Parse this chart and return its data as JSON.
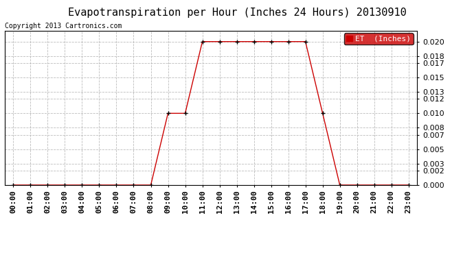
{
  "title": "Evapotranspiration per Hour (Inches 24 Hours) 20130910",
  "copyright": "Copyright 2013 Cartronics.com",
  "legend_label": "ET  (Inches)",
  "legend_bg": "#cc0000",
  "legend_text_color": "#ffffff",
  "line_color": "#cc0000",
  "marker_color": "#000000",
  "background_color": "#ffffff",
  "grid_color": "#bbbbbb",
  "hours": [
    "00:00",
    "01:00",
    "02:00",
    "03:00",
    "04:00",
    "05:00",
    "06:00",
    "07:00",
    "08:00",
    "09:00",
    "10:00",
    "11:00",
    "12:00",
    "13:00",
    "14:00",
    "15:00",
    "16:00",
    "17:00",
    "18:00",
    "19:00",
    "20:00",
    "21:00",
    "22:00",
    "23:00"
  ],
  "values": [
    0.0,
    0.0,
    0.0,
    0.0,
    0.0,
    0.0,
    0.0,
    0.0,
    0.0,
    0.01,
    0.01,
    0.02,
    0.02,
    0.02,
    0.02,
    0.02,
    0.02,
    0.02,
    0.01,
    0.0,
    0.0,
    0.0,
    0.0,
    0.0
  ],
  "ylim": [
    0.0,
    0.0215
  ],
  "yticks": [
    0.0,
    0.002,
    0.003,
    0.005,
    0.007,
    0.008,
    0.01,
    0.012,
    0.013,
    0.015,
    0.017,
    0.018,
    0.02
  ],
  "title_fontsize": 11,
  "copyright_fontsize": 7,
  "axis_fontsize": 8,
  "legend_fontsize": 8
}
